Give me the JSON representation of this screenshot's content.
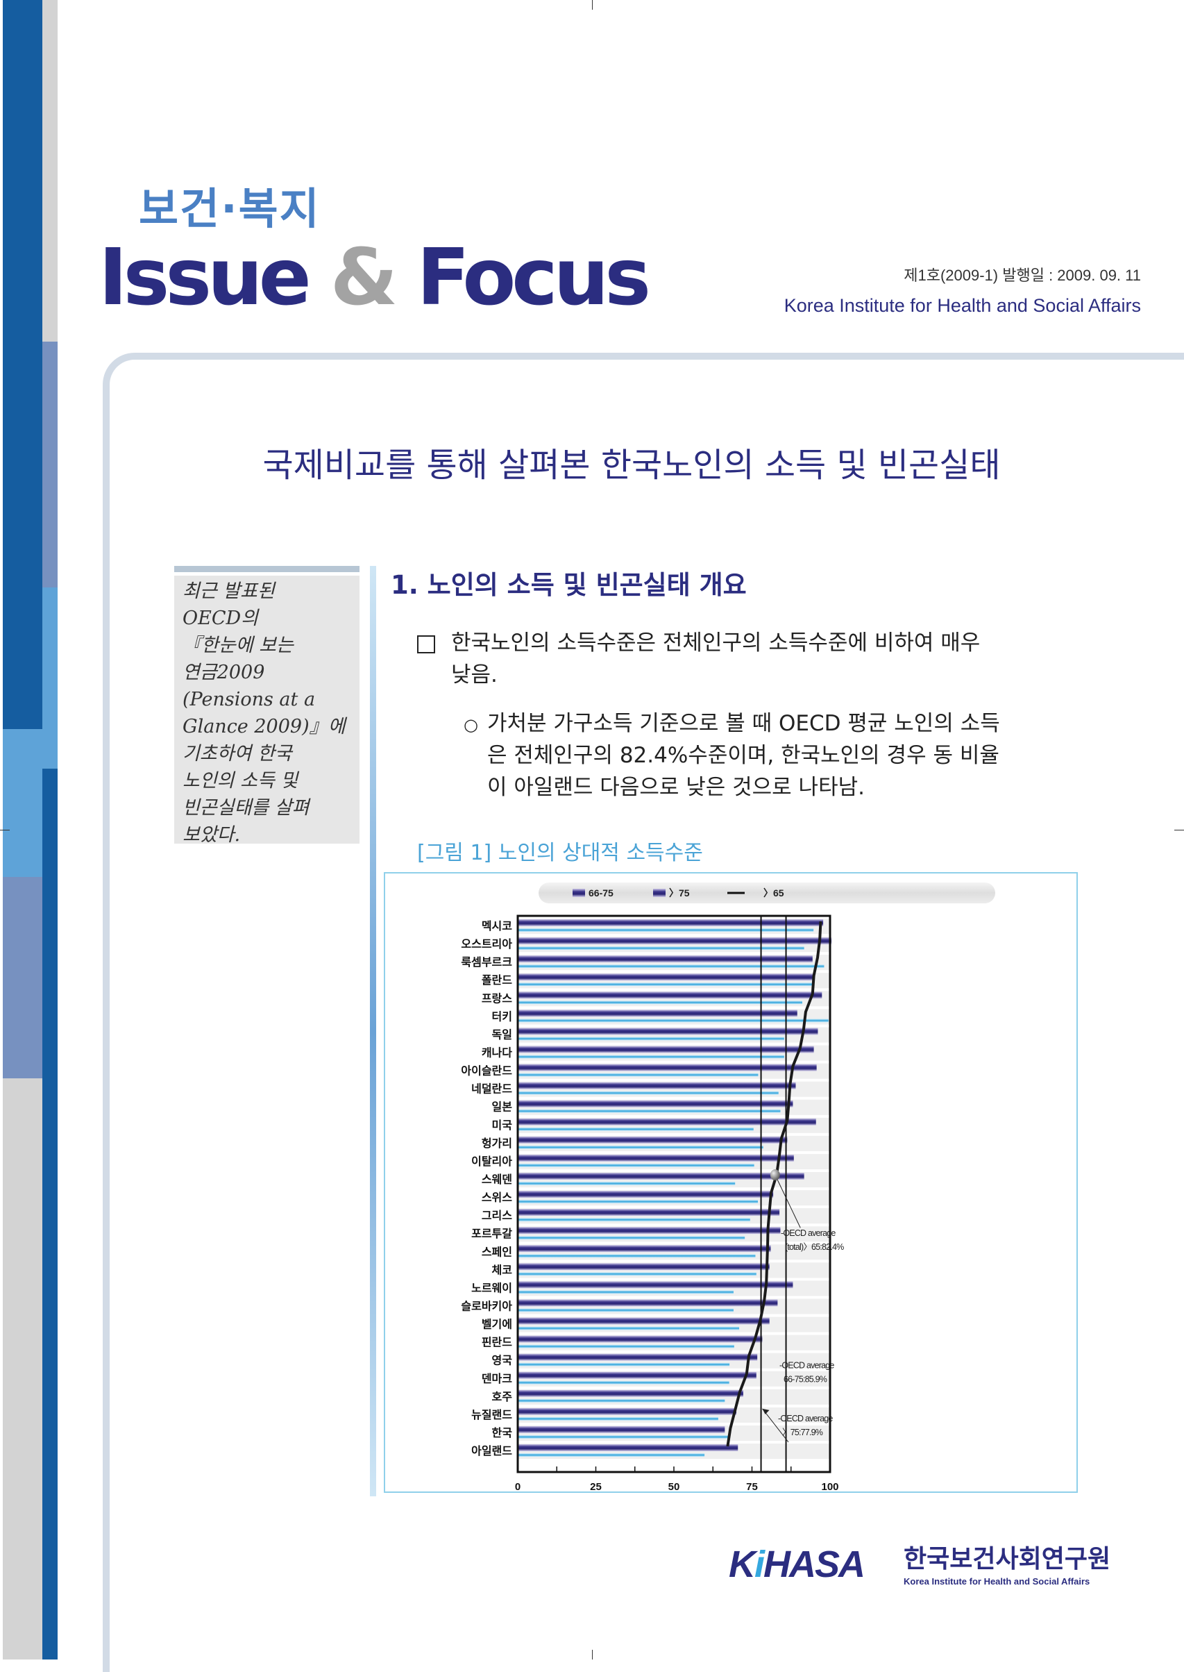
{
  "header": {
    "sub_brand": "보건·복지",
    "brand_issue": "Issue",
    "brand_amp": "&",
    "brand_focus": "Focus",
    "issue_info": "제1호(2009-1) 발행일 : 2009. 09. 11",
    "org_name_en": "Korea Institute for Health and Social Affairs"
  },
  "document": {
    "title": "국제비교를 통해 살펴본 한국노인의 소득 및 빈곤실태",
    "sidebar_lines": [
      "최근 발표된",
      "OECD의",
      "『한눈에 보는",
      "연금2009",
      "(Pensions at a",
      "Glance 2009)』에",
      "기초하여 한국",
      "노인의 소득 및",
      "빈곤실태를 살펴",
      "보았다."
    ],
    "section_heading": "1. 노인의 소득 및 빈곤실태 개요",
    "bullet_lines": [
      "한국노인의 소득수준은 전체인구의 소득수준에 비하여 매우",
      "낮음."
    ],
    "sub_bullet_marker": "○",
    "sub_bullet_lines": [
      "가처분 가구소득 기준으로 볼 때 OECD 평균 노인의 소득",
      "은 전체인구의 82.4%수준이며, 한국노인의 경우 동 비율",
      "이 아일랜드 다음으로 낮은 것으로 나타남."
    ],
    "figure_caption": "[그림 1] 노인의 상대적 소득수준"
  },
  "chart_data": {
    "type": "bar",
    "orientation": "horizontal",
    "categories": [
      "멕시코",
      "오스트리아",
      "룩셈부르크",
      "폴란드",
      "프랑스",
      "터키",
      "독일",
      "캐나다",
      "아이슬란드",
      "네덜란드",
      "일본",
      "미국",
      "헝가리",
      "이탈리아",
      "스웨덴",
      "스위스",
      "그리스",
      "포르투갈",
      "스페인",
      "체코",
      "노르웨이",
      "슬로바키아",
      "벨기에",
      "핀란드",
      "영국",
      "덴마크",
      "호주",
      "뉴질랜드",
      "한국",
      "아일랜드"
    ],
    "series": [
      {
        "name": "66-75",
        "type": "bar",
        "color": "#2e2a7a",
        "values": [
          97.8,
          101,
          94.4,
          94.8,
          97.4,
          89.5,
          96.1,
          94.8,
          95.7,
          89,
          88.1,
          95.5,
          86.3,
          88.4,
          91.7,
          81.8,
          83.8,
          84.1,
          81,
          80.6,
          88.1,
          83.2,
          80.6,
          78.3,
          76.7,
          76.4,
          72.2,
          70,
          66.3,
          70.5
        ]
      },
      {
        "name": "〉75",
        "type": "bar",
        "color": "#38a8dc",
        "values": [
          94.7,
          91.7,
          98.1,
          94.8,
          91.1,
          99.5,
          85.3,
          85.3,
          77,
          83.5,
          84.1,
          75.5,
          78.6,
          75.7,
          69.6,
          76.9,
          74.4,
          72.7,
          76.1,
          76.4,
          69.1,
          69.1,
          70.9,
          69.3,
          67.8,
          67.7,
          66.3,
          64.2,
          67.4,
          59.8
        ]
      },
      {
        "name": "〉65",
        "type": "line",
        "color": "#1a1a1a",
        "values": [
          97,
          96.7,
          96,
          94.8,
          94.4,
          92.2,
          91.5,
          90.4,
          88.1,
          87.2,
          86.8,
          86.3,
          84.4,
          83.7,
          82.9,
          81.1,
          80.6,
          80.1,
          80,
          79.8,
          79.6,
          78.9,
          77.7,
          76.1,
          74,
          73.3,
          71.1,
          69.6,
          68.1,
          67.2
        ]
      }
    ],
    "xlim": [
      0,
      100
    ],
    "x_ticks": [
      "0",
      "25",
      "50",
      "75",
      "100"
    ],
    "x_tick_values": [
      0,
      25,
      50,
      75,
      100
    ],
    "reference_lines": [
      {
        "value": 85.9,
        "label_line1": "-OECD average",
        "label_line2": "66-75:85.9%"
      },
      {
        "value": 77.9,
        "label_line1": "-OECD average",
        "label_line2": "〉75:77.9%"
      }
    ],
    "marker": {
      "value": 82.4,
      "label_line1": "-OECD average",
      "label_line2": "(total)〉65:82.4%"
    },
    "legend_position": "top",
    "grid": false
  },
  "footer": {
    "logo_text": "KiHASA",
    "org_name_kr": "한국보건사회연구원",
    "org_name_en": "Korea Institute for Health and Social Affairs"
  },
  "colors": {
    "brand_navy": "#2b2d80",
    "brand_blue": "#4a80c4",
    "caption_blue": "#4aa3d6",
    "stripe_dark": "#155da0",
    "stripe_light": "#5ea3d8",
    "stripe_mid": "#7791c0",
    "stripe_gray": "#d3d3d3"
  }
}
